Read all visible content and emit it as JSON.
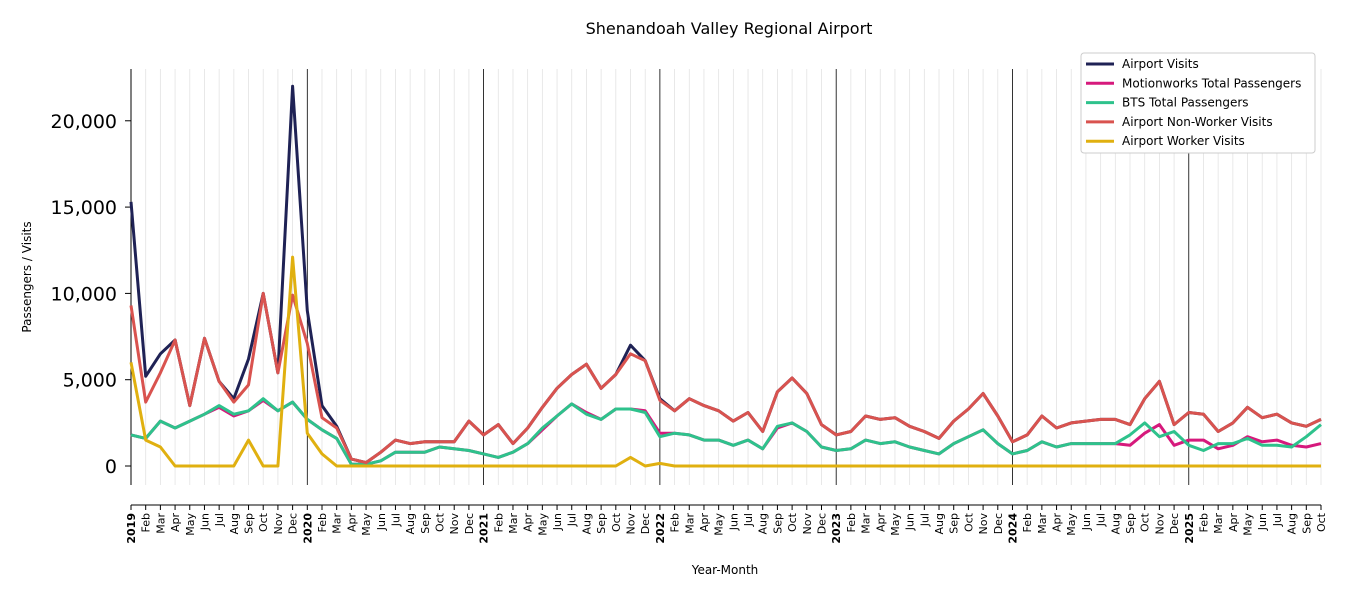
{
  "chart_data": {
    "type": "line",
    "title": "Shenandoah Valley Regional Airport",
    "xlabel": "Year-Month",
    "ylabel": "Passengers / Visits",
    "ylim": [
      -1100,
      23000
    ],
    "y_ticks": [
      0,
      5000,
      10000,
      15000,
      20000
    ],
    "y_tick_labels": [
      "0",
      "5,000",
      "10,000",
      "15,000",
      "20,000"
    ],
    "x_tick_labels": [
      "2019",
      "Feb",
      "Mar",
      "Apr",
      "May",
      "Jun",
      "Jul",
      "Aug",
      "Sep",
      "Oct",
      "Nov",
      "Dec",
      "2020",
      "Feb",
      "Mar",
      "Apr",
      "May",
      "Jun",
      "Jul",
      "Aug",
      "Sep",
      "Oct",
      "Nov",
      "Dec",
      "2021",
      "Feb",
      "Mar",
      "Apr",
      "May",
      "Jun",
      "Jul",
      "Aug",
      "Sep",
      "Oct",
      "Nov",
      "Dec",
      "2022",
      "Feb",
      "Mar",
      "Apr",
      "May",
      "Jun",
      "Jul",
      "Aug",
      "Sep",
      "Oct",
      "Nov",
      "Dec",
      "2023",
      "Feb",
      "Mar",
      "Apr",
      "May",
      "Jun",
      "Jul",
      "Aug",
      "Sep",
      "Oct",
      "Nov",
      "Dec",
      "2024",
      "Feb",
      "Mar",
      "Apr",
      "May",
      "Jun",
      "Jul",
      "Aug",
      "Sep",
      "Oct",
      "Nov",
      "Dec",
      "2025",
      "Feb",
      "Mar",
      "Apr",
      "May",
      "Jun",
      "Jul",
      "Aug",
      "Sep",
      "Oct"
    ],
    "x": [
      "2019-01",
      "2019-02",
      "2019-03",
      "2019-04",
      "2019-05",
      "2019-06",
      "2019-07",
      "2019-08",
      "2019-09",
      "2019-10",
      "2019-11",
      "2019-12",
      "2020-01",
      "2020-02",
      "2020-03",
      "2020-04",
      "2020-05",
      "2020-06",
      "2020-07",
      "2020-08",
      "2020-09",
      "2020-10",
      "2020-11",
      "2020-12",
      "2021-01",
      "2021-02",
      "2021-03",
      "2021-04",
      "2021-05",
      "2021-06",
      "2021-07",
      "2021-08",
      "2021-09",
      "2021-10",
      "2021-11",
      "2021-12",
      "2022-01",
      "2022-02",
      "2022-03",
      "2022-04",
      "2022-05",
      "2022-06",
      "2022-07",
      "2022-08",
      "2022-09",
      "2022-10",
      "2022-11",
      "2022-12",
      "2023-01",
      "2023-02",
      "2023-03",
      "2023-04",
      "2023-05",
      "2023-06",
      "2023-07",
      "2023-08",
      "2023-09",
      "2023-10",
      "2023-11",
      "2023-12",
      "2024-01",
      "2024-02",
      "2024-03",
      "2024-04",
      "2024-05",
      "2024-06",
      "2024-07",
      "2024-08",
      "2024-09",
      "2024-10",
      "2024-11",
      "2024-12",
      "2025-01",
      "2025-02",
      "2025-03",
      "2025-04",
      "2025-05",
      "2025-06",
      "2025-07",
      "2025-08",
      "2025-09",
      "2025-10"
    ],
    "grid": "vertical",
    "legend_position": "top-right",
    "series": [
      {
        "name": "Airport Visits",
        "color": "#1f2255",
        "values": [
          15300,
          5200,
          6500,
          7300,
          3500,
          7400,
          4900,
          3900,
          6200,
          10000,
          5400,
          22000,
          9000,
          3500,
          2300,
          400,
          200,
          800,
          1500,
          1300,
          1400,
          1400,
          1400,
          2600,
          1800,
          2400,
          1300,
          2200,
          3400,
          4500,
          5300,
          5900,
          4500,
          5300,
          7000,
          6100,
          3900,
          3200,
          3900,
          3500,
          3200,
          2600,
          3100,
          2000,
          4300,
          5100,
          4200,
          2400,
          1800,
          2000,
          2900,
          2700,
          2800,
          2300,
          2000,
          1600,
          2600,
          3300,
          4200,
          2900,
          1400,
          1800,
          2900,
          2200,
          2500,
          2600,
          2700,
          2700,
          2400,
          3900,
          4900,
          2400,
          3100,
          3000,
          2000,
          2500,
          3400,
          2800,
          3000,
          2500,
          2300,
          2700
        ]
      },
      {
        "name": "Motionworks Total Passengers",
        "color": "#d6197c",
        "values": [
          1800,
          1600,
          2600,
          2200,
          2600,
          3000,
          3400,
          2900,
          3200,
          3800,
          3200,
          3700,
          2700,
          2100,
          1600,
          100,
          100,
          300,
          800,
          800,
          800,
          1100,
          1000,
          900,
          700,
          500,
          800,
          1300,
          2100,
          2900,
          3600,
          3100,
          2700,
          3300,
          3300,
          3200,
          1900,
          1900,
          1800,
          1500,
          1500,
          1200,
          1500,
          1000,
          2200,
          2500,
          2000,
          1100,
          900,
          1000,
          1500,
          1300,
          1400,
          1100,
          900,
          700,
          1300,
          1700,
          2100,
          1300,
          700,
          900,
          1400,
          1100,
          1300,
          1300,
          1300,
          1300,
          1200,
          1900,
          2400,
          1200,
          1500,
          1500,
          1000,
          1200,
          1700,
          1400,
          1500,
          1200,
          1100,
          1300
        ]
      },
      {
        "name": "BTS Total Passengers",
        "color": "#2ec28c",
        "values": [
          1800,
          1600,
          2600,
          2200,
          2600,
          3000,
          3500,
          3000,
          3200,
          3900,
          3200,
          3700,
          2700,
          2100,
          1600,
          100,
          100,
          300,
          800,
          800,
          800,
          1100,
          1000,
          900,
          700,
          500,
          800,
          1300,
          2200,
          2900,
          3600,
          3000,
          2700,
          3300,
          3300,
          3100,
          1700,
          1900,
          1800,
          1500,
          1500,
          1200,
          1500,
          1000,
          2300,
          2500,
          2000,
          1100,
          900,
          1000,
          1500,
          1300,
          1400,
          1100,
          900,
          700,
          1300,
          1700,
          2100,
          1300,
          700,
          900,
          1400,
          1100,
          1300,
          1300,
          1300,
          1300,
          1800,
          2500,
          1700,
          2000,
          1200,
          900,
          1300,
          1300,
          1600,
          1200,
          1200,
          1100,
          1700,
          2400
        ]
      },
      {
        "name": "Airport Non-Worker Visits",
        "color": "#d9534f",
        "values": [
          9300,
          3700,
          5400,
          7300,
          3500,
          7400,
          4900,
          3700,
          4700,
          10000,
          5400,
          9900,
          7100,
          2800,
          2200,
          400,
          200,
          800,
          1500,
          1300,
          1400,
          1400,
          1400,
          2600,
          1800,
          2400,
          1300,
          2200,
          3400,
          4500,
          5300,
          5900,
          4500,
          5300,
          6500,
          6100,
          3800,
          3200,
          3900,
          3500,
          3200,
          2600,
          3100,
          2000,
          4300,
          5100,
          4200,
          2400,
          1800,
          2000,
          2900,
          2700,
          2800,
          2300,
          2000,
          1600,
          2600,
          3300,
          4200,
          2900,
          1400,
          1800,
          2900,
          2200,
          2500,
          2600,
          2700,
          2700,
          2400,
          3900,
          4900,
          2400,
          3100,
          3000,
          2000,
          2500,
          3400,
          2800,
          3000,
          2500,
          2300,
          2700
        ]
      },
      {
        "name": "Airport Worker Visits",
        "color": "#e0b010",
        "values": [
          6000,
          1500,
          1100,
          0,
          0,
          0,
          0,
          0,
          1500,
          0,
          0,
          12100,
          1900,
          700,
          0,
          0,
          0,
          0,
          0,
          0,
          0,
          0,
          0,
          0,
          0,
          0,
          0,
          0,
          0,
          0,
          0,
          0,
          0,
          0,
          500,
          0,
          150,
          0,
          0,
          0,
          0,
          0,
          0,
          0,
          0,
          0,
          0,
          0,
          0,
          0,
          0,
          0,
          0,
          0,
          0,
          0,
          0,
          0,
          0,
          0,
          0,
          0,
          0,
          0,
          0,
          0,
          0,
          0,
          0,
          0,
          0,
          0,
          0,
          0,
          0,
          0,
          0,
          0,
          0,
          0,
          0,
          0
        ]
      }
    ]
  }
}
